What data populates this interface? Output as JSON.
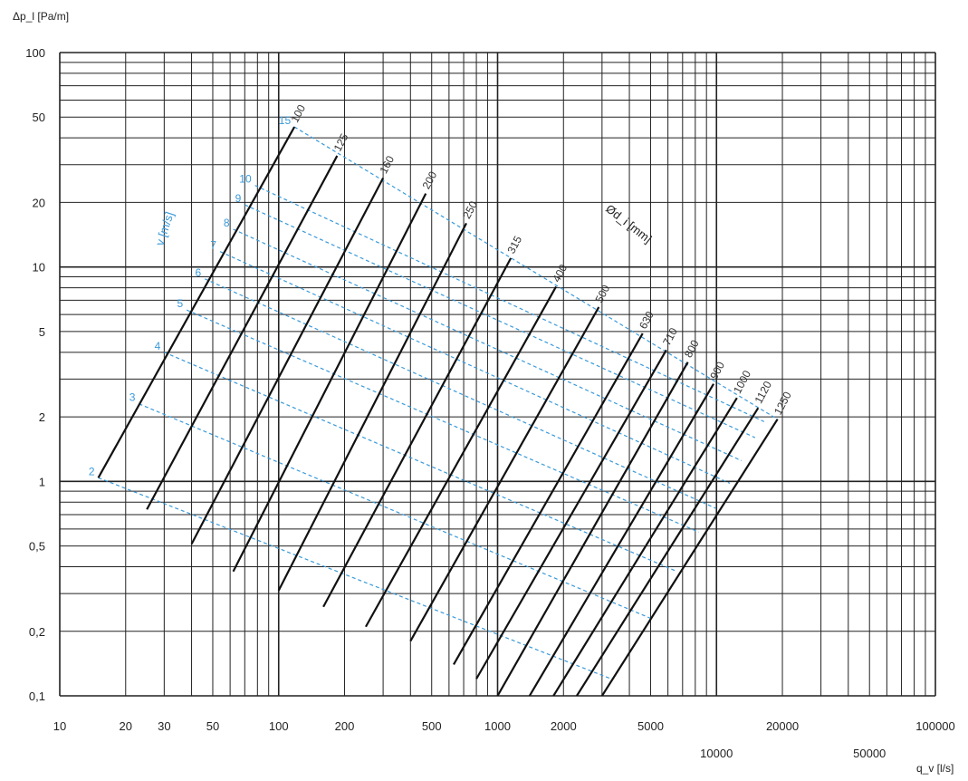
{
  "chart_data": {
    "type": "line",
    "scale": "log-log",
    "grid": true,
    "xlabel": "q_v [l/s]",
    "ylabel": "Δp_l [Pa/m]",
    "xlim": [
      10,
      100000
    ],
    "ylim": [
      0.1,
      100
    ],
    "x_ticks": [
      {
        "value": 10,
        "label": "10"
      },
      {
        "value": 20,
        "label": "20"
      },
      {
        "value": 30,
        "label": "30"
      },
      {
        "value": 50,
        "label": "50"
      },
      {
        "value": 100,
        "label": "100"
      },
      {
        "value": 200,
        "label": "200"
      },
      {
        "value": 500,
        "label": "500"
      },
      {
        "value": 1000,
        "label": "1000"
      },
      {
        "value": 2000,
        "label": "2000"
      },
      {
        "value": 5000,
        "label": "5000"
      },
      {
        "value": 10000,
        "label": "10000"
      },
      {
        "value": 20000,
        "label": "20000"
      },
      {
        "value": 50000,
        "label": "50000"
      },
      {
        "value": 100000,
        "label": "100000"
      }
    ],
    "y_ticks": [
      {
        "value": 0.1,
        "label": "0,1"
      },
      {
        "value": 0.2,
        "label": "0,2"
      },
      {
        "value": 0.5,
        "label": "0,5"
      },
      {
        "value": 1,
        "label": "1"
      },
      {
        "value": 2,
        "label": "2"
      },
      {
        "value": 5,
        "label": "5"
      },
      {
        "value": 10,
        "label": "10"
      },
      {
        "value": 20,
        "label": "20"
      },
      {
        "value": 50,
        "label": "50"
      },
      {
        "value": 100,
        "label": "100"
      }
    ],
    "diameter_title": "Ød_i [mm]",
    "velocity_title": "v [m/s]",
    "diameter_series": [
      {
        "label": "100",
        "points": [
          [
            15,
            1.04
          ],
          [
            118,
            45
          ]
        ]
      },
      {
        "label": "125",
        "points": [
          [
            25,
            0.74
          ],
          [
            185,
            33
          ]
        ]
      },
      {
        "label": "160",
        "points": [
          [
            40,
            0.51
          ],
          [
            300,
            26
          ]
        ]
      },
      {
        "label": "200",
        "points": [
          [
            62,
            0.38
          ],
          [
            470,
            22
          ]
        ]
      },
      {
        "label": "250",
        "points": [
          [
            100,
            0.31
          ],
          [
            720,
            16
          ]
        ]
      },
      {
        "label": "315",
        "points": [
          [
            160,
            0.26
          ],
          [
            1150,
            11
          ]
        ]
      },
      {
        "label": "400",
        "points": [
          [
            250,
            0.21
          ],
          [
            1850,
            8.1
          ]
        ]
      },
      {
        "label": "500",
        "points": [
          [
            400,
            0.18
          ],
          [
            2900,
            6.5
          ]
        ]
      },
      {
        "label": "630",
        "points": [
          [
            630,
            0.14
          ],
          [
            4600,
            4.9
          ]
        ]
      },
      {
        "label": "710",
        "points": [
          [
            800,
            0.12
          ],
          [
            5900,
            4.1
          ]
        ]
      },
      {
        "label": "800",
        "points": [
          [
            1000,
            0.1
          ],
          [
            7400,
            3.6
          ]
        ]
      },
      {
        "label": "900",
        "points": [
          [
            1400,
            0.1
          ],
          [
            9700,
            2.85
          ]
        ]
      },
      {
        "label": "1000",
        "points": [
          [
            1800,
            0.1
          ],
          [
            12400,
            2.45
          ]
        ]
      },
      {
        "label": "1120",
        "points": [
          [
            2300,
            0.1
          ],
          [
            15500,
            2.2
          ]
        ]
      },
      {
        "label": "1250",
        "points": [
          [
            3000,
            0.1
          ],
          [
            19000,
            1.95
          ]
        ]
      }
    ],
    "velocity_series": [
      {
        "label": "2",
        "points": [
          [
            15,
            1.04
          ],
          [
            3300,
            0.12
          ]
        ]
      },
      {
        "label": "3",
        "points": [
          [
            23,
            2.3
          ],
          [
            5000,
            0.23
          ]
        ]
      },
      {
        "label": "4",
        "points": [
          [
            30,
            4.0
          ],
          [
            6600,
            0.38
          ]
        ]
      },
      {
        "label": "5",
        "points": [
          [
            38,
            6.3
          ],
          [
            8300,
            0.58
          ]
        ]
      },
      {
        "label": "6",
        "points": [
          [
            46,
            8.8
          ],
          [
            9900,
            0.75
          ]
        ]
      },
      {
        "label": "7",
        "points": [
          [
            54,
            11.8
          ],
          [
            11500,
            0.98
          ]
        ]
      },
      {
        "label": "8",
        "points": [
          [
            62,
            15
          ],
          [
            13000,
            1.25
          ]
        ]
      },
      {
        "label": "9",
        "points": [
          [
            70,
            19.5
          ],
          [
            15000,
            1.6
          ]
        ]
      },
      {
        "label": "10",
        "points": [
          [
            78,
            24
          ],
          [
            16500,
            1.9
          ]
        ]
      },
      {
        "label": "15",
        "points": [
          [
            118,
            45
          ],
          [
            19000,
            1.95
          ]
        ]
      }
    ]
  }
}
